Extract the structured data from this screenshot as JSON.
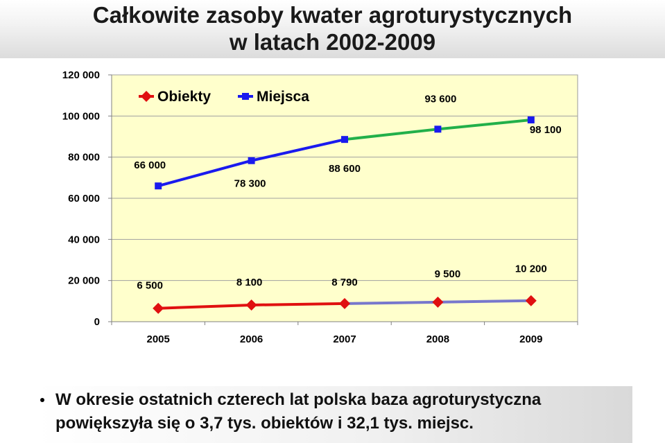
{
  "title": {
    "line1": "Całkowite zasoby kwater agroturystycznych",
    "line2": "w latach 2002-2009"
  },
  "chart_data": {
    "type": "line",
    "categories": [
      "2005",
      "2006",
      "2007",
      "2008",
      "2009"
    ],
    "ylim": [
      0,
      120000
    ],
    "yticks": [
      0,
      20000,
      40000,
      60000,
      80000,
      100000,
      120000
    ],
    "ytick_labels": [
      "0",
      "20 000",
      "40 000",
      "60 000",
      "80 000",
      "100 000",
      "120 000"
    ],
    "legend_placement": "top-left",
    "grid": true,
    "series": [
      {
        "name": "Obiekty",
        "values": [
          6500,
          8100,
          8790,
          9500,
          10200
        ],
        "data_labels": [
          "6 500",
          "8 100",
          "8 790",
          "9 500",
          "10 200"
        ],
        "color": "#e01010",
        "later_color": "#7777cc",
        "marker": "diamond"
      },
      {
        "name": "Miejsca",
        "values": [
          66000,
          78300,
          88600,
          93600,
          98100
        ],
        "data_labels": [
          "66 000",
          "78 300",
          "88 600",
          "93 600",
          "98 100"
        ],
        "color": "#1a1aee",
        "later_color": "#22b04a",
        "marker": "square"
      }
    ],
    "plot_background": "#ffffcc"
  },
  "bullet": {
    "line1": "W okresie ostatnich czterech lat polska baza agroturystyczna",
    "line2": "powiększyła się o 3,7 tys. obiektów i 32,1 tys. miejsc."
  }
}
